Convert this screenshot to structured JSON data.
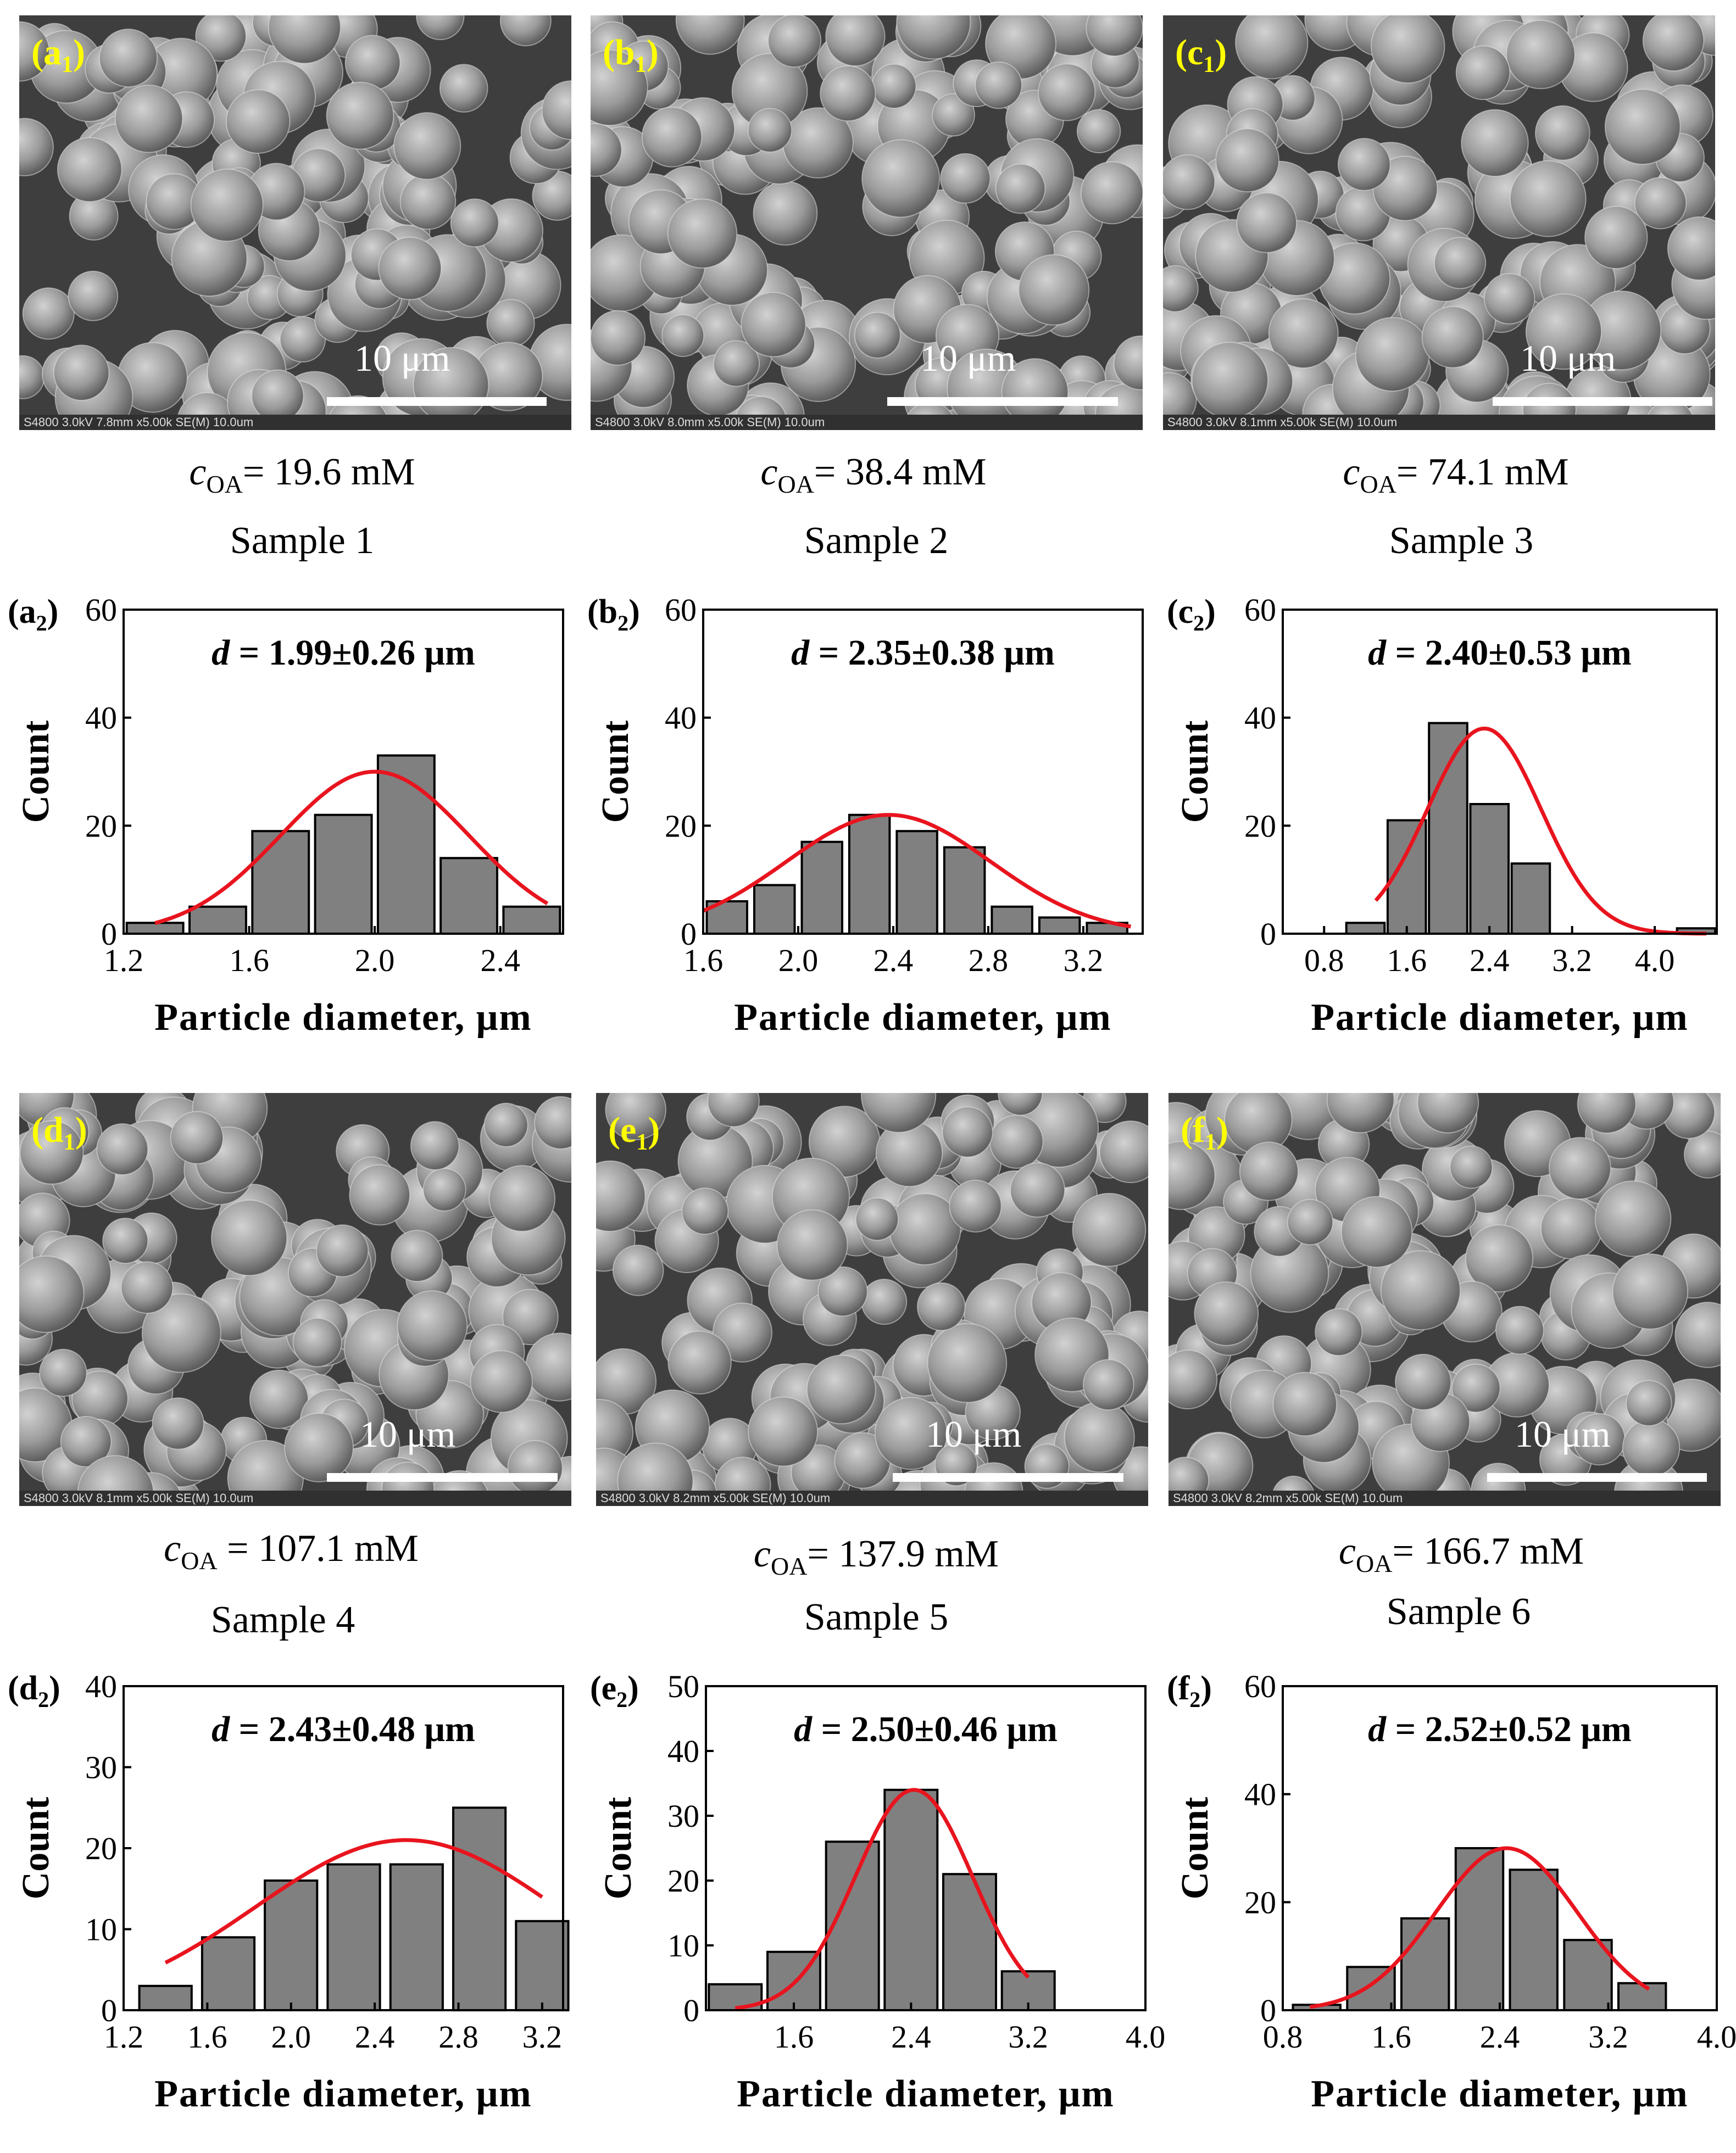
{
  "scale_label": "10 μm",
  "sem_info": [
    "S4800 3.0kV 7.8mm x5.00k SE(M)",
    "S4800 3.0kV 8.0mm x5.00k SE(M)",
    "S4800 3.0kV 8.1mm x5.00k SE(M)",
    "S4800 3.0kV 8.1mm x5.00k SE(M)",
    "S4800 3.0kV 8.2mm x5.00k SE(M)",
    "S4800 3.0kV 8.2mm x5.00k SE(M)"
  ],
  "sem_scale_text": "10.0um",
  "samples": [
    {
      "panel_sem": "a",
      "sub_sem": "1",
      "panel_chart": "a",
      "sub_chart": "2",
      "c_sym": "c",
      "c_sub": "OA",
      "c_value": "= 19.6 mM",
      "sample": "Sample 1"
    },
    {
      "panel_sem": "b",
      "sub_sem": "1",
      "panel_chart": "b",
      "sub_chart": "2",
      "c_sym": "c",
      "c_sub": "OA",
      "c_value": "= 38.4 mM",
      "sample": "Sample 2"
    },
    {
      "panel_sem": "c",
      "sub_sem": "1",
      "panel_chart": "c",
      "sub_chart": "2",
      "c_sym": "c",
      "c_sub": "OA",
      "c_value": "= 74.1 mM",
      "sample": "Sample 3"
    },
    {
      "panel_sem": "d",
      "sub_sem": "1",
      "panel_chart": "d",
      "sub_chart": "2",
      "c_sym": "c",
      "c_sub": "OA",
      "c_value": " = 107.1 mM",
      "sample": "Sample 4"
    },
    {
      "panel_sem": "e",
      "sub_sem": "1",
      "panel_chart": "e",
      "sub_chart": "2",
      "c_sym": "c",
      "c_sub": "OA",
      "c_value": "= 137.9 mM",
      "sample": "Sample 5"
    },
    {
      "panel_sem": "f",
      "sub_sem": "1",
      "panel_chart": "f",
      "sub_chart": "2",
      "c_sym": "c",
      "c_sub": "OA",
      "c_value": "= 166.7 mM",
      "sample": "Sample 6"
    }
  ],
  "colors": {
    "bar": "#808080",
    "fit": "#e8141e",
    "sem_bg": "#5a5a5a",
    "panel_tag": "#ffff00"
  },
  "chart_data": [
    {
      "type": "bar",
      "panel": "a2",
      "xlabel": "Particle diameter, μm",
      "ylabel": "Count",
      "annotation_sym": "d",
      "annotation": " = 1.99±0.26 μm",
      "x_range": [
        1.2,
        2.6
      ],
      "ylim": [
        0,
        60
      ],
      "x_ticks": [
        1.2,
        1.6,
        2.0,
        2.4
      ],
      "x_tick_labels": [
        "1.2",
        "1.6",
        "2.0",
        "2.4"
      ],
      "y_ticks": [
        0,
        20,
        40,
        60
      ],
      "y_tick_labels": [
        "0",
        "20",
        "40",
        "60"
      ],
      "bar_centers": [
        1.3,
        1.5,
        1.7,
        1.9,
        2.1,
        2.3,
        2.5
      ],
      "bar_width": 0.18,
      "values": [
        2,
        5,
        19,
        22,
        33,
        14,
        5
      ],
      "fit": {
        "x0": 1.3,
        "x1": 2.55,
        "amp": 30,
        "mu": 2.0,
        "sigma": 0.3,
        "base": 0
      }
    },
    {
      "type": "bar",
      "panel": "b2",
      "xlabel": "Particle diameter, μm",
      "ylabel": "Count",
      "annotation_sym": "d",
      "annotation": " = 2.35±0.38 μm",
      "x_range": [
        1.6,
        3.45
      ],
      "ylim": [
        0,
        60
      ],
      "x_ticks": [
        1.6,
        2.0,
        2.4,
        2.8,
        3.2
      ],
      "x_tick_labels": [
        "1.6",
        "2.0",
        "2.4",
        "2.8",
        "3.2"
      ],
      "y_ticks": [
        0,
        20,
        40,
        60
      ],
      "y_tick_labels": [
        "0",
        "20",
        "40",
        "60"
      ],
      "bar_centers": [
        1.7,
        1.9,
        2.1,
        2.3,
        2.5,
        2.7,
        2.9,
        3.1,
        3.3
      ],
      "bar_width": 0.17,
      "values": [
        6,
        9,
        17,
        22,
        19,
        16,
        5,
        3,
        2
      ],
      "fit": {
        "x0": 1.6,
        "x1": 3.4,
        "amp": 22,
        "mu": 2.38,
        "sigma": 0.43,
        "base": 0
      }
    },
    {
      "type": "bar",
      "panel": "c2",
      "xlabel": "Particle diameter, μm",
      "ylabel": "Count",
      "annotation_sym": "d",
      "annotation": " = 2.40±0.53 μm",
      "x_range": [
        0.4,
        4.6
      ],
      "ylim": [
        0,
        60
      ],
      "x_ticks": [
        0.8,
        1.6,
        2.4,
        3.2,
        4.0
      ],
      "x_tick_labels": [
        "0.8",
        "1.6",
        "2.4",
        "3.2",
        "4.0"
      ],
      "y_ticks": [
        0,
        20,
        40,
        60
      ],
      "y_tick_labels": [
        "0",
        "20",
        "40",
        "60"
      ],
      "bar_centers": [
        1.2,
        1.6,
        2.0,
        2.4,
        2.8,
        3.2,
        4.4
      ],
      "bar_width": 0.37,
      "values": [
        2,
        21,
        39,
        24,
        13,
        0,
        1
      ],
      "fit": {
        "x0": 1.3,
        "x1": 4.5,
        "amp": 38,
        "mu": 2.35,
        "sigma": 0.55,
        "base": 0
      }
    },
    {
      "type": "bar",
      "panel": "d2",
      "xlabel": "Particle diameter, μm",
      "ylabel": "Count",
      "annotation_sym": "d",
      "annotation": " = 2.43±0.48 μm",
      "x_range": [
        1.2,
        3.3
      ],
      "ylim": [
        0,
        40
      ],
      "x_ticks": [
        1.2,
        1.6,
        2.0,
        2.4,
        2.8,
        3.2
      ],
      "x_tick_labels": [
        "1.2",
        "1.6",
        "2.0",
        "2.4",
        "2.8",
        "3.2"
      ],
      "y_ticks": [
        0,
        10,
        20,
        30,
        40
      ],
      "y_tick_labels": [
        "0",
        "10",
        "20",
        "30",
        "40"
      ],
      "bar_centers": [
        1.4,
        1.7,
        2.0,
        2.3,
        2.6,
        2.9,
        3.2
      ],
      "bar_width": 0.25,
      "values": [
        3,
        9,
        16,
        18,
        18,
        25,
        11
      ],
      "fit": {
        "x0": 1.4,
        "x1": 3.2,
        "amp": 21,
        "mu": 2.55,
        "sigma": 0.72,
        "base": 0
      }
    },
    {
      "type": "bar",
      "panel": "e2",
      "xlabel": "Particle diameter, μm",
      "ylabel": "Count",
      "annotation_sym": "d",
      "annotation": " = 2.50±0.46 μm",
      "x_range": [
        1.0,
        4.0
      ],
      "ylim": [
        0,
        50
      ],
      "x_ticks": [
        1.6,
        2.4,
        3.2,
        4.0
      ],
      "x_tick_labels": [
        "1.6",
        "2.4",
        "3.2",
        "4.0"
      ],
      "y_ticks": [
        0,
        10,
        20,
        30,
        40,
        50
      ],
      "y_tick_labels": [
        "0",
        "10",
        "20",
        "30",
        "40",
        "50"
      ],
      "bar_centers": [
        1.2,
        1.6,
        2.0,
        2.4,
        2.8,
        3.2
      ],
      "bar_width": 0.36,
      "values": [
        4,
        9,
        26,
        34,
        21,
        6
      ],
      "fit": {
        "x0": 1.2,
        "x1": 3.2,
        "amp": 34,
        "mu": 2.42,
        "sigma": 0.4,
        "base": 0
      }
    },
    {
      "type": "bar",
      "panel": "f2",
      "xlabel": "Particle diameter, μm",
      "ylabel": "Count",
      "annotation_sym": "d",
      "annotation": " = 2.52±0.52 μm",
      "x_range": [
        0.8,
        4.0
      ],
      "ylim": [
        0,
        60
      ],
      "x_ticks": [
        0.8,
        1.6,
        2.4,
        3.2,
        4.0
      ],
      "x_tick_labels": [
        "0.8",
        "1.6",
        "2.4",
        "3.2",
        "4.0"
      ],
      "y_ticks": [
        0,
        20,
        40,
        60
      ],
      "y_tick_labels": [
        "0",
        "20",
        "40",
        "60"
      ],
      "bar_centers": [
        1.05,
        1.45,
        1.85,
        2.25,
        2.65,
        3.05,
        3.45
      ],
      "bar_width": 0.35,
      "values": [
        1,
        8,
        17,
        30,
        26,
        13,
        5
      ],
      "fit": {
        "x0": 1.0,
        "x1": 3.5,
        "amp": 30,
        "mu": 2.45,
        "sigma": 0.52,
        "base": 0
      }
    }
  ]
}
